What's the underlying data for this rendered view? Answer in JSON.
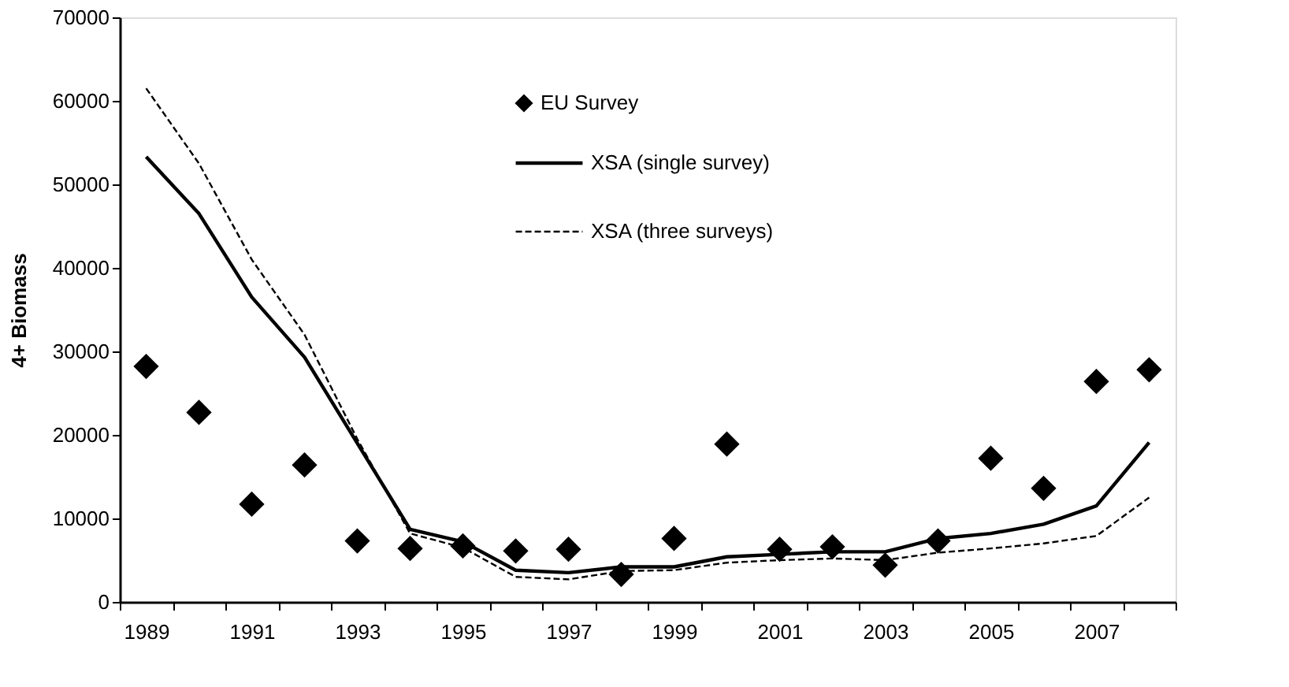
{
  "chart_data": {
    "type": "line",
    "ylabel": "4+ Biomass",
    "categories": [
      "1989",
      null,
      "1991",
      null,
      "1993",
      null,
      "1995",
      null,
      "1997",
      null,
      "1999",
      null,
      "2001",
      null,
      "2003",
      null,
      "2005",
      null,
      "2007",
      null
    ],
    "series": [
      {
        "name": "EU Survey",
        "type": "scatter",
        "marker": "diamond",
        "color": "#000000",
        "values": [
          28200,
          22700,
          11700,
          16400,
          7300,
          6400,
          6700,
          6100,
          6300,
          3300,
          7600,
          18900,
          6300,
          6600,
          4400,
          7300,
          17200,
          13600,
          26400,
          27800
        ]
      },
      {
        "name": "XSA (single survey)",
        "line_style": "solid",
        "color": "#000000",
        "values": [
          53300,
          46500,
          36500,
          29300,
          19000,
          8700,
          7200,
          3800,
          3500,
          4200,
          4200,
          5400,
          5700,
          6000,
          6000,
          7600,
          8200,
          9300,
          11500,
          19100
        ]
      },
      {
        "name": "XSA (three surveys)",
        "line_style": "dashed",
        "color": "#000000",
        "values": [
          61500,
          52500,
          41000,
          32000,
          19500,
          8200,
          6500,
          3000,
          2700,
          3700,
          3800,
          4700,
          5000,
          5200,
          5000,
          5900,
          6400,
          7000,
          7900,
          12500
        ]
      }
    ],
    "ylim": [
      0,
      70000
    ],
    "yticks": [
      0,
      10000,
      20000,
      30000,
      40000,
      50000,
      60000,
      70000
    ],
    "grid": false,
    "legend": "top"
  }
}
